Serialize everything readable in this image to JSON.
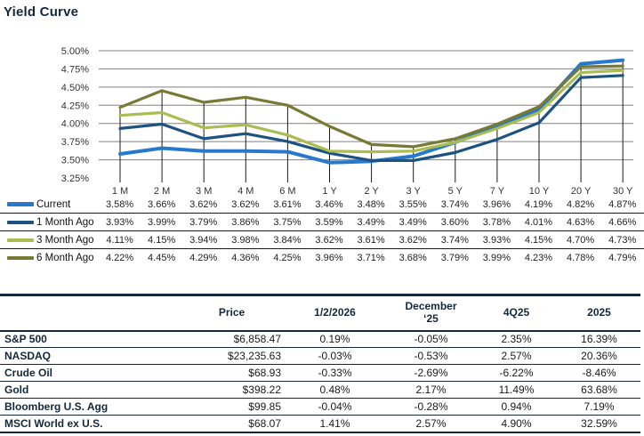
{
  "title": "Yield Curve",
  "colors": {
    "title_text": "#14283C",
    "grid_line": "#808080",
    "drop_line": "#1a1a1a",
    "axis_text": "#333333",
    "value_text": "#1f1f1f",
    "table_navy": "#14283C"
  },
  "chart_data": {
    "type": "line",
    "title": "Yield Curve",
    "categories": [
      "1 M",
      "2 M",
      "3 M",
      "4 M",
      "6 M",
      "1 Y",
      "2 Y",
      "3 Y",
      "5 Y",
      "7 Y",
      "10 Y",
      "20 Y",
      "30 Y"
    ],
    "y_ticks": [
      "5.00%",
      "4.75%",
      "4.50%",
      "4.25%",
      "4.00%",
      "3.75%",
      "3.50%",
      "3.25%"
    ],
    "ylim": [
      3.25,
      5.0
    ],
    "grid": true,
    "legend_position": "left-table-below",
    "series": [
      {
        "name": "Current",
        "color": "#2878CE",
        "width": 4,
        "values": [
          3.58,
          3.66,
          3.62,
          3.62,
          3.61,
          3.46,
          3.48,
          3.55,
          3.74,
          3.96,
          4.19,
          4.82,
          4.87
        ]
      },
      {
        "name": "1 Month Ago",
        "color": "#1E5280",
        "width": 3.2,
        "values": [
          3.93,
          3.99,
          3.79,
          3.86,
          3.75,
          3.59,
          3.49,
          3.49,
          3.6,
          3.78,
          4.01,
          4.63,
          4.66
        ]
      },
      {
        "name": "3 Month Ago",
        "color": "#A9BD51",
        "width": 3.2,
        "values": [
          4.11,
          4.15,
          3.94,
          3.98,
          3.84,
          3.62,
          3.61,
          3.62,
          3.74,
          3.93,
          4.15,
          4.7,
          4.73
        ]
      },
      {
        "name": "6 Month Ago",
        "color": "#767A33",
        "width": 3.2,
        "values": [
          4.22,
          4.45,
          4.29,
          4.36,
          4.25,
          3.96,
          3.71,
          3.68,
          3.79,
          3.99,
          4.23,
          4.78,
          4.79
        ]
      }
    ]
  },
  "market_table": {
    "headers": {
      "price": "Price",
      "col1": "1/2/2026",
      "col2_line1": "December",
      "col2_line2": "‘25",
      "col3": "4Q25",
      "col4": "2025"
    },
    "rows": [
      {
        "name": "S&P 500",
        "price": "$6,858.47",
        "values": [
          "0.19%",
          "-0.05%",
          "2.35%",
          "16.39%"
        ]
      },
      {
        "name": "NASDAQ",
        "price": "$23,235.63",
        "values": [
          "-0.03%",
          "-0.53%",
          "2.57%",
          "20.36%"
        ]
      },
      {
        "name": "Crude Oil",
        "price": "$68.93",
        "values": [
          "-0.33%",
          "-2.69%",
          "-6.22%",
          "-8.46%"
        ]
      },
      {
        "name": "Gold",
        "price": "$398.22",
        "values": [
          "0.48%",
          "2.17%",
          "11.49%",
          "63.68%"
        ]
      },
      {
        "name": "Bloomberg U.S. Agg",
        "price": "$99.85",
        "values": [
          "-0.04%",
          "-0.28%",
          "0.94%",
          "7.19%"
        ]
      },
      {
        "name": "MSCI World ex U.S.",
        "price": "$68.07",
        "values": [
          "1.41%",
          "2.57%",
          "4.90%",
          "32.59%"
        ]
      }
    ]
  }
}
